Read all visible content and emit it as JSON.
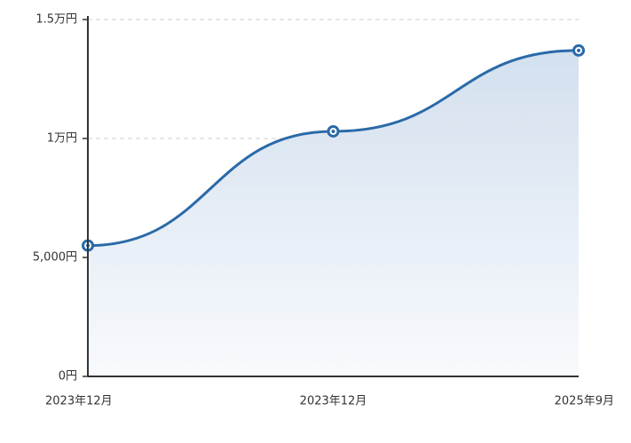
{
  "chart_data": {
    "type": "area",
    "categories": [
      "2023年12月",
      "2023年12月",
      "2025年9月"
    ],
    "values": [
      5500,
      10300,
      13700
    ],
    "color": "#2a6aa8",
    "ylim": [
      0,
      15000
    ],
    "yticks": [
      {
        "value": 0,
        "label": "0円"
      },
      {
        "value": 5000,
        "label": "5,000円"
      },
      {
        "value": 10000,
        "label": "1万円"
      },
      {
        "value": 15000,
        "label": "1.5万円"
      }
    ],
    "grid": true
  }
}
